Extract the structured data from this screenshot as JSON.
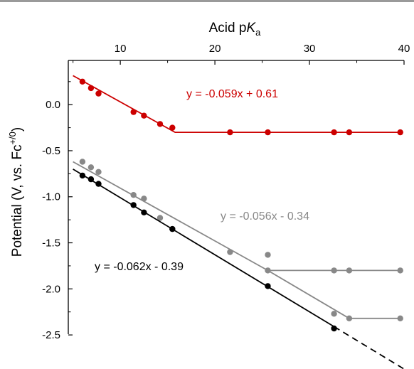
{
  "chart_data": {
    "type": "scatter",
    "xlabel": {
      "main": "Acid p",
      "italic": "K",
      "sub": "a"
    },
    "ylabel": {
      "main": "Potential (V, vs. Fc",
      "sup": "+/0",
      "close": ")"
    },
    "xlim": [
      4.5,
      40
    ],
    "ylim": [
      -2.7,
      0.48
    ],
    "x_ticks": [
      10,
      20,
      30,
      40
    ],
    "y_ticks": [
      0.0,
      -0.5,
      -1.0,
      -1.5,
      -2.0,
      -2.5
    ],
    "y_tick_labels": [
      "0.0",
      "-0.5",
      "-1.0",
      "-1.5",
      "-2.0",
      "-2.5"
    ],
    "x_axis_position": "top",
    "grid": false,
    "series": [
      {
        "color": "#cc0000",
        "points": [
          [
            6.0,
            0.25
          ],
          [
            6.9,
            0.18
          ],
          [
            7.7,
            0.12
          ],
          [
            11.4,
            -0.08
          ],
          [
            12.5,
            -0.12
          ],
          [
            14.2,
            -0.21
          ],
          [
            15.5,
            -0.25
          ],
          [
            21.6,
            -0.3
          ],
          [
            25.6,
            -0.3
          ],
          [
            32.6,
            -0.3
          ],
          [
            34.2,
            -0.3
          ],
          [
            39.6,
            -0.3
          ]
        ],
        "fit_line": [
          [
            5.0,
            0.315
          ],
          [
            15.8,
            -0.3
          ],
          [
            39.6,
            -0.3
          ]
        ],
        "fit_dashed": false,
        "label": "y = -0.059x + 0.61"
      },
      {
        "color": "#888888",
        "points": [
          [
            6.0,
            -0.62
          ],
          [
            6.9,
            -0.68
          ],
          [
            7.7,
            -0.73
          ],
          [
            11.4,
            -0.98
          ],
          [
            12.5,
            -1.02
          ],
          [
            14.2,
            -1.23
          ],
          [
            15.5,
            -1.35
          ],
          [
            21.6,
            -1.6
          ],
          [
            25.6,
            -1.63
          ],
          [
            25.6,
            -1.8
          ],
          [
            32.6,
            -1.8
          ],
          [
            34.2,
            -1.8
          ],
          [
            39.6,
            -1.8
          ],
          [
            32.6,
            -2.27
          ],
          [
            34.2,
            -2.32
          ],
          [
            39.6,
            -2.32
          ]
        ],
        "fit_line": [
          [
            5.0,
            -0.62
          ],
          [
            25.6,
            -1.8
          ],
          [
            39.6,
            -1.8
          ]
        ],
        "fit_line_2": [
          [
            25.6,
            -1.8
          ],
          [
            34.2,
            -2.32
          ],
          [
            39.6,
            -2.32
          ]
        ],
        "fit_dashed": false,
        "label": "y = -0.056x - 0.34"
      },
      {
        "color": "#000000",
        "points": [
          [
            6.0,
            -0.77
          ],
          [
            6.9,
            -0.81
          ],
          [
            7.7,
            -0.86
          ],
          [
            11.4,
            -1.09
          ],
          [
            12.5,
            -1.17
          ],
          [
            15.5,
            -1.35
          ],
          [
            25.6,
            -1.97
          ],
          [
            32.6,
            -2.43
          ]
        ],
        "fit_line": [
          [
            5.0,
            -0.7
          ],
          [
            32.6,
            -2.41
          ]
        ],
        "fit_extension": [
          [
            32.6,
            -2.41
          ],
          [
            40.0,
            -2.87
          ]
        ],
        "fit_dashed": true,
        "label": "y = -0.062x - 0.39"
      }
    ]
  }
}
